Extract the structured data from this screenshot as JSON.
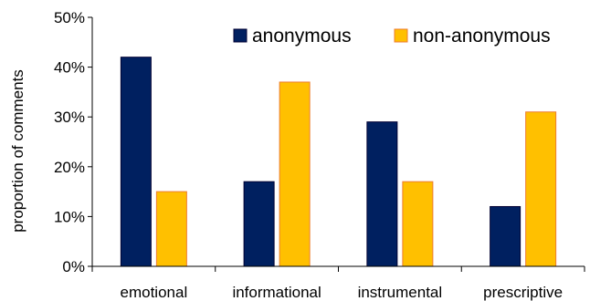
{
  "chart_data": {
    "type": "bar",
    "title": "",
    "xlabel": "",
    "ylabel": "proportion of comments",
    "categories": [
      "emotional",
      "informational",
      "instrumental",
      "prescriptive"
    ],
    "series": [
      {
        "name": "anonymous",
        "values": [
          42,
          17,
          29,
          12
        ],
        "color": "#002060",
        "stroke": "#000033"
      },
      {
        "name": "non-anonymous",
        "values": [
          15,
          37,
          17,
          31
        ],
        "color": "#FFC000",
        "stroke": "#ED7D31"
      }
    ],
    "ylim": [
      0,
      50
    ],
    "yticks": [
      0,
      10,
      20,
      30,
      40,
      50
    ],
    "ytick_labels": [
      "0%",
      "10%",
      "20%",
      "30%",
      "40%",
      "50%"
    ],
    "grid": false,
    "legend": "top-right"
  }
}
